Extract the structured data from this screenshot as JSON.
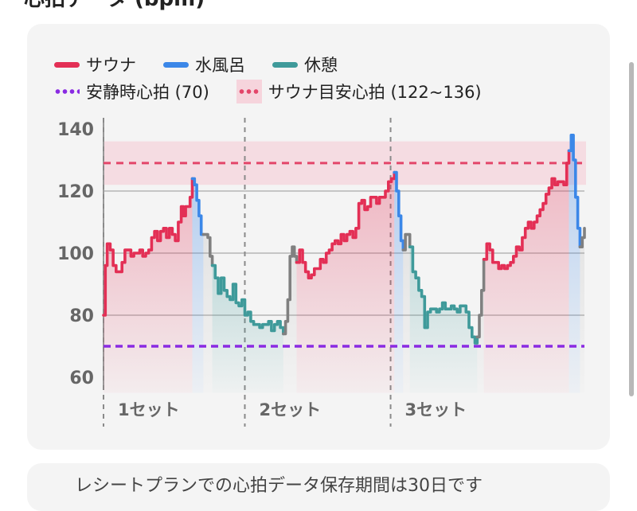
{
  "header": {
    "title": "心拍データ (bpm)"
  },
  "legend": {
    "row1": [
      {
        "label": "サウナ",
        "color": "#e32f55",
        "style": "line"
      },
      {
        "label": "水風呂",
        "color": "#3b87e8",
        "style": "line"
      },
      {
        "label": "休憩",
        "color": "#3f9a9a",
        "style": "line"
      }
    ],
    "row2": [
      {
        "label": "安静時心拍 (70)",
        "color": "#8a2be2",
        "style": "dots"
      },
      {
        "label": "サウナ目安心拍 (122~136)",
        "color": "#e3466a",
        "style": "band"
      }
    ]
  },
  "footer": {
    "text": "レシートプランでの心拍データ保存期間は30日です"
  },
  "chart_data": {
    "type": "line",
    "title": "",
    "xlabel": "",
    "ylabel": "",
    "ylim": [
      55,
      142
    ],
    "yticks": [
      60,
      80,
      100,
      120,
      140
    ],
    "grid": "horizontal",
    "colors": {
      "sauna": "#e32f55",
      "cold": "#3b87e8",
      "rest": "#3f9a9a",
      "transition": "#808080",
      "resting_line": "#8a2be2",
      "target_band": "#f6d4dc",
      "target_line": "#e3466a"
    },
    "resting_hr": 70,
    "target_band": [
      122,
      136
    ],
    "target_line": 129,
    "x_range": [
      0,
      100
    ],
    "sets": [
      {
        "label": "1セット",
        "start": 0
      },
      {
        "label": "2セット",
        "start": 38.2
      },
      {
        "label": "3セット",
        "start": 77.6
      }
    ],
    "series": [
      {
        "phase": "sauna",
        "points": [
          [
            0,
            80
          ],
          [
            0.5,
            96
          ],
          [
            1,
            103
          ],
          [
            1.8,
            101
          ],
          [
            2.6,
            96
          ],
          [
            3.4,
            94
          ],
          [
            4.2,
            94
          ],
          [
            5,
            97
          ],
          [
            5.8,
            101
          ],
          [
            6.6,
            101
          ],
          [
            7.4,
            99
          ],
          [
            8.2,
            100
          ],
          [
            9,
            100
          ],
          [
            9.8,
            101
          ],
          [
            10.6,
            99
          ],
          [
            11.4,
            100
          ],
          [
            12.2,
            101
          ],
          [
            13,
            105
          ],
          [
            13.8,
            107
          ],
          [
            14.6,
            104
          ],
          [
            15.4,
            107
          ],
          [
            16.2,
            108
          ],
          [
            17,
            105
          ],
          [
            17.8,
            108
          ],
          [
            18.6,
            106
          ],
          [
            19.4,
            104
          ],
          [
            20.2,
            110
          ],
          [
            21,
            115
          ],
          [
            21.6,
            112
          ],
          [
            22.2,
            115
          ],
          [
            22.8,
            115
          ],
          [
            23.4,
            118
          ],
          [
            24,
            124
          ]
        ]
      },
      {
        "phase": "cold",
        "points": [
          [
            24,
            124
          ],
          [
            24.6,
            122
          ],
          [
            25.2,
            117
          ],
          [
            25.8,
            112
          ],
          [
            26.4,
            106
          ],
          [
            27,
            106
          ]
        ]
      },
      {
        "phase": "transition",
        "points": [
          [
            27,
            106
          ],
          [
            27.6,
            106
          ],
          [
            28.2,
            105
          ],
          [
            28.8,
            99
          ],
          [
            29.4,
            96
          ]
        ]
      },
      {
        "phase": "rest",
        "points": [
          [
            29.4,
            96
          ],
          [
            30.2,
            92
          ],
          [
            31,
            87
          ],
          [
            31.8,
            92
          ],
          [
            32.6,
            88
          ],
          [
            33.4,
            86
          ],
          [
            34.2,
            85
          ],
          [
            35,
            90
          ],
          [
            35.8,
            84
          ],
          [
            36.6,
            83
          ],
          [
            37.4,
            85
          ],
          [
            38.2,
            80
          ],
          [
            39,
            81
          ],
          [
            39.8,
            78
          ],
          [
            40.6,
            77
          ],
          [
            41.4,
            77
          ],
          [
            42.2,
            76
          ],
          [
            43,
            77
          ],
          [
            43.8,
            77
          ],
          [
            44.6,
            78
          ],
          [
            45.4,
            75
          ],
          [
            46.2,
            77
          ],
          [
            47,
            78
          ],
          [
            47.8,
            76
          ],
          [
            48.6,
            74
          ]
        ]
      },
      {
        "phase": "transition",
        "points": [
          [
            48.6,
            74
          ],
          [
            49.2,
            78
          ],
          [
            49.8,
            85
          ],
          [
            50.4,
            99
          ],
          [
            51,
            102
          ],
          [
            51.6,
            99
          ],
          [
            52.2,
            97
          ]
        ]
      },
      {
        "phase": "sauna",
        "points": [
          [
            52.2,
            97
          ],
          [
            53,
            101
          ],
          [
            53.8,
            97
          ],
          [
            54.6,
            94
          ],
          [
            55.4,
            92
          ],
          [
            56.2,
            93
          ],
          [
            57,
            95
          ],
          [
            57.8,
            95
          ],
          [
            58.6,
            98
          ],
          [
            59.4,
            97
          ],
          [
            60.2,
            100
          ],
          [
            61,
            101
          ],
          [
            61.8,
            103
          ],
          [
            62.6,
            104
          ],
          [
            63.4,
            103
          ],
          [
            64.2,
            106
          ],
          [
            65,
            104
          ],
          [
            65.8,
            106
          ],
          [
            66.6,
            107
          ],
          [
            67.4,
            105
          ],
          [
            68.2,
            108
          ],
          [
            69,
            116
          ],
          [
            69.8,
            117
          ],
          [
            70.6,
            114
          ],
          [
            71.4,
            115
          ],
          [
            72.2,
            118
          ],
          [
            73,
            118
          ],
          [
            73.8,
            116
          ],
          [
            74.6,
            118
          ],
          [
            75.4,
            118
          ],
          [
            76.2,
            120
          ],
          [
            77,
            123
          ],
          [
            77.8,
            124
          ],
          [
            78.6,
            126
          ]
        ]
      },
      {
        "phase": "cold",
        "points": [
          [
            78.6,
            126
          ],
          [
            79.2,
            120
          ],
          [
            79.8,
            112
          ],
          [
            80.4,
            104
          ],
          [
            81,
            101
          ]
        ]
      },
      {
        "phase": "transition",
        "points": [
          [
            81,
            101
          ],
          [
            81.6,
            106
          ],
          [
            82.2,
            106
          ],
          [
            82.8,
            102
          ]
        ]
      },
      {
        "phase": "rest",
        "points": [
          [
            82.8,
            102
          ],
          [
            83.6,
            94
          ],
          [
            84.4,
            92
          ],
          [
            85.2,
            88
          ],
          [
            86,
            86
          ],
          [
            86.8,
            76
          ],
          [
            87.6,
            81
          ],
          [
            88.4,
            82
          ],
          [
            89.2,
            82
          ],
          [
            90,
            81
          ],
          [
            90.8,
            82
          ],
          [
            91.6,
            84
          ],
          [
            92.4,
            82
          ],
          [
            93.2,
            82
          ],
          [
            94,
            83
          ],
          [
            94.8,
            82
          ],
          [
            95.6,
            81
          ],
          [
            96.4,
            83
          ],
          [
            97.2,
            83
          ],
          [
            98,
            81
          ],
          [
            98.8,
            76
          ],
          [
            99.6,
            73
          ],
          [
            100.4,
            71
          ],
          [
            101,
            73
          ]
        ]
      },
      {
        "phase": "transition",
        "points": [
          [
            101,
            73
          ],
          [
            101.6,
            80
          ],
          [
            102.2,
            88
          ],
          [
            102.8,
            98
          ]
        ]
      },
      {
        "phase": "sauna",
        "points": [
          [
            102.8,
            98
          ],
          [
            103.6,
            103
          ],
          [
            104.4,
            101
          ],
          [
            105.2,
            97
          ],
          [
            106,
            97
          ],
          [
            106.8,
            95
          ],
          [
            107.6,
            96
          ],
          [
            108.4,
            95
          ],
          [
            109.2,
            96
          ],
          [
            110,
            97
          ],
          [
            110.8,
            99
          ],
          [
            111.6,
            102
          ],
          [
            112.4,
            101
          ],
          [
            113.2,
            105
          ],
          [
            114,
            108
          ],
          [
            114.8,
            110
          ],
          [
            115.6,
            108
          ],
          [
            116.4,
            110
          ],
          [
            117.2,
            112
          ],
          [
            118,
            114
          ],
          [
            118.8,
            116
          ],
          [
            119.6,
            119
          ],
          [
            120.4,
            121
          ],
          [
            121.2,
            124
          ],
          [
            122,
            122
          ],
          [
            122.8,
            123
          ],
          [
            123.6,
            123
          ],
          [
            124.4,
            122
          ],
          [
            125.2,
            129
          ],
          [
            125.8,
            133
          ]
        ]
      },
      {
        "phase": "cold",
        "points": [
          [
            125.8,
            133
          ],
          [
            126.4,
            138
          ],
          [
            127,
            130
          ],
          [
            127.6,
            118
          ],
          [
            128.2,
            108
          ],
          [
            128.8,
            102
          ]
        ]
      },
      {
        "phase": "transition",
        "points": [
          [
            128.8,
            102
          ],
          [
            129.4,
            105
          ],
          [
            130,
            108
          ]
        ]
      }
    ]
  }
}
